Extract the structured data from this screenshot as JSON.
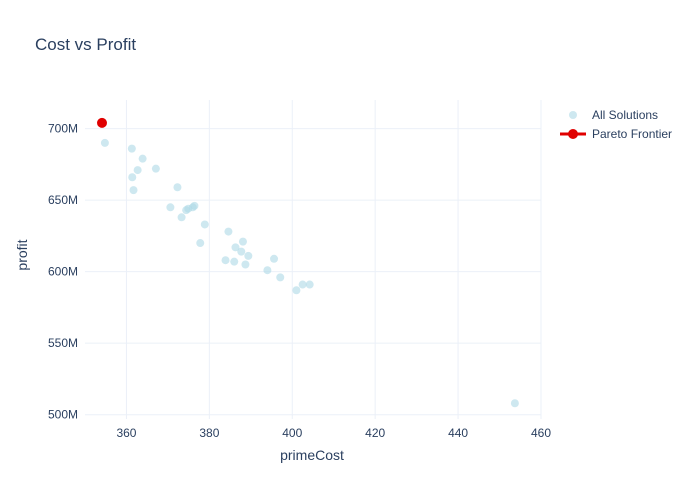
{
  "chart_data": {
    "type": "scatter",
    "title": "Cost vs Profit",
    "xlabel": "primeCost",
    "ylabel": "profit",
    "xlim": [
      350,
      460
    ],
    "ylim": [
      497,
      720
    ],
    "x_ticks": [
      360,
      380,
      400,
      420,
      440,
      460
    ],
    "x_tick_labels": [
      "360",
      "380",
      "400",
      "420",
      "440",
      "460"
    ],
    "y_ticks": [
      500,
      550,
      600,
      650,
      700
    ],
    "y_tick_labels": [
      "500M",
      "550M",
      "600M",
      "650M",
      "700M"
    ],
    "grid": true,
    "legend_position": "top-right",
    "series": [
      {
        "name": "All Solutions",
        "mode": "markers",
        "color": "#add8e6",
        "points": [
          [
            354.8,
            690
          ],
          [
            361.3,
            686
          ],
          [
            363.9,
            679
          ],
          [
            362.7,
            671
          ],
          [
            367.1,
            672
          ],
          [
            361.4,
            666
          ],
          [
            361.7,
            657
          ],
          [
            372.3,
            659
          ],
          [
            370.6,
            645
          ],
          [
            376.4,
            646
          ],
          [
            376.0,
            645
          ],
          [
            374.9,
            644
          ],
          [
            374.4,
            643
          ],
          [
            373.3,
            638
          ],
          [
            378.9,
            633
          ],
          [
            377.8,
            620
          ],
          [
            384.6,
            628
          ],
          [
            388.1,
            621
          ],
          [
            386.3,
            617
          ],
          [
            387.7,
            614
          ],
          [
            389.4,
            611
          ],
          [
            395.6,
            609
          ],
          [
            383.9,
            608
          ],
          [
            386.0,
            607
          ],
          [
            388.7,
            605
          ],
          [
            394.0,
            601
          ],
          [
            397.1,
            596
          ],
          [
            402.5,
            591
          ],
          [
            404.2,
            591
          ],
          [
            401.0,
            587
          ],
          [
            453.7,
            508
          ]
        ]
      },
      {
        "name": "Pareto Frontier",
        "mode": "lines+markers",
        "color": "#e00000",
        "points": [
          [
            354.1,
            704
          ]
        ]
      }
    ]
  }
}
